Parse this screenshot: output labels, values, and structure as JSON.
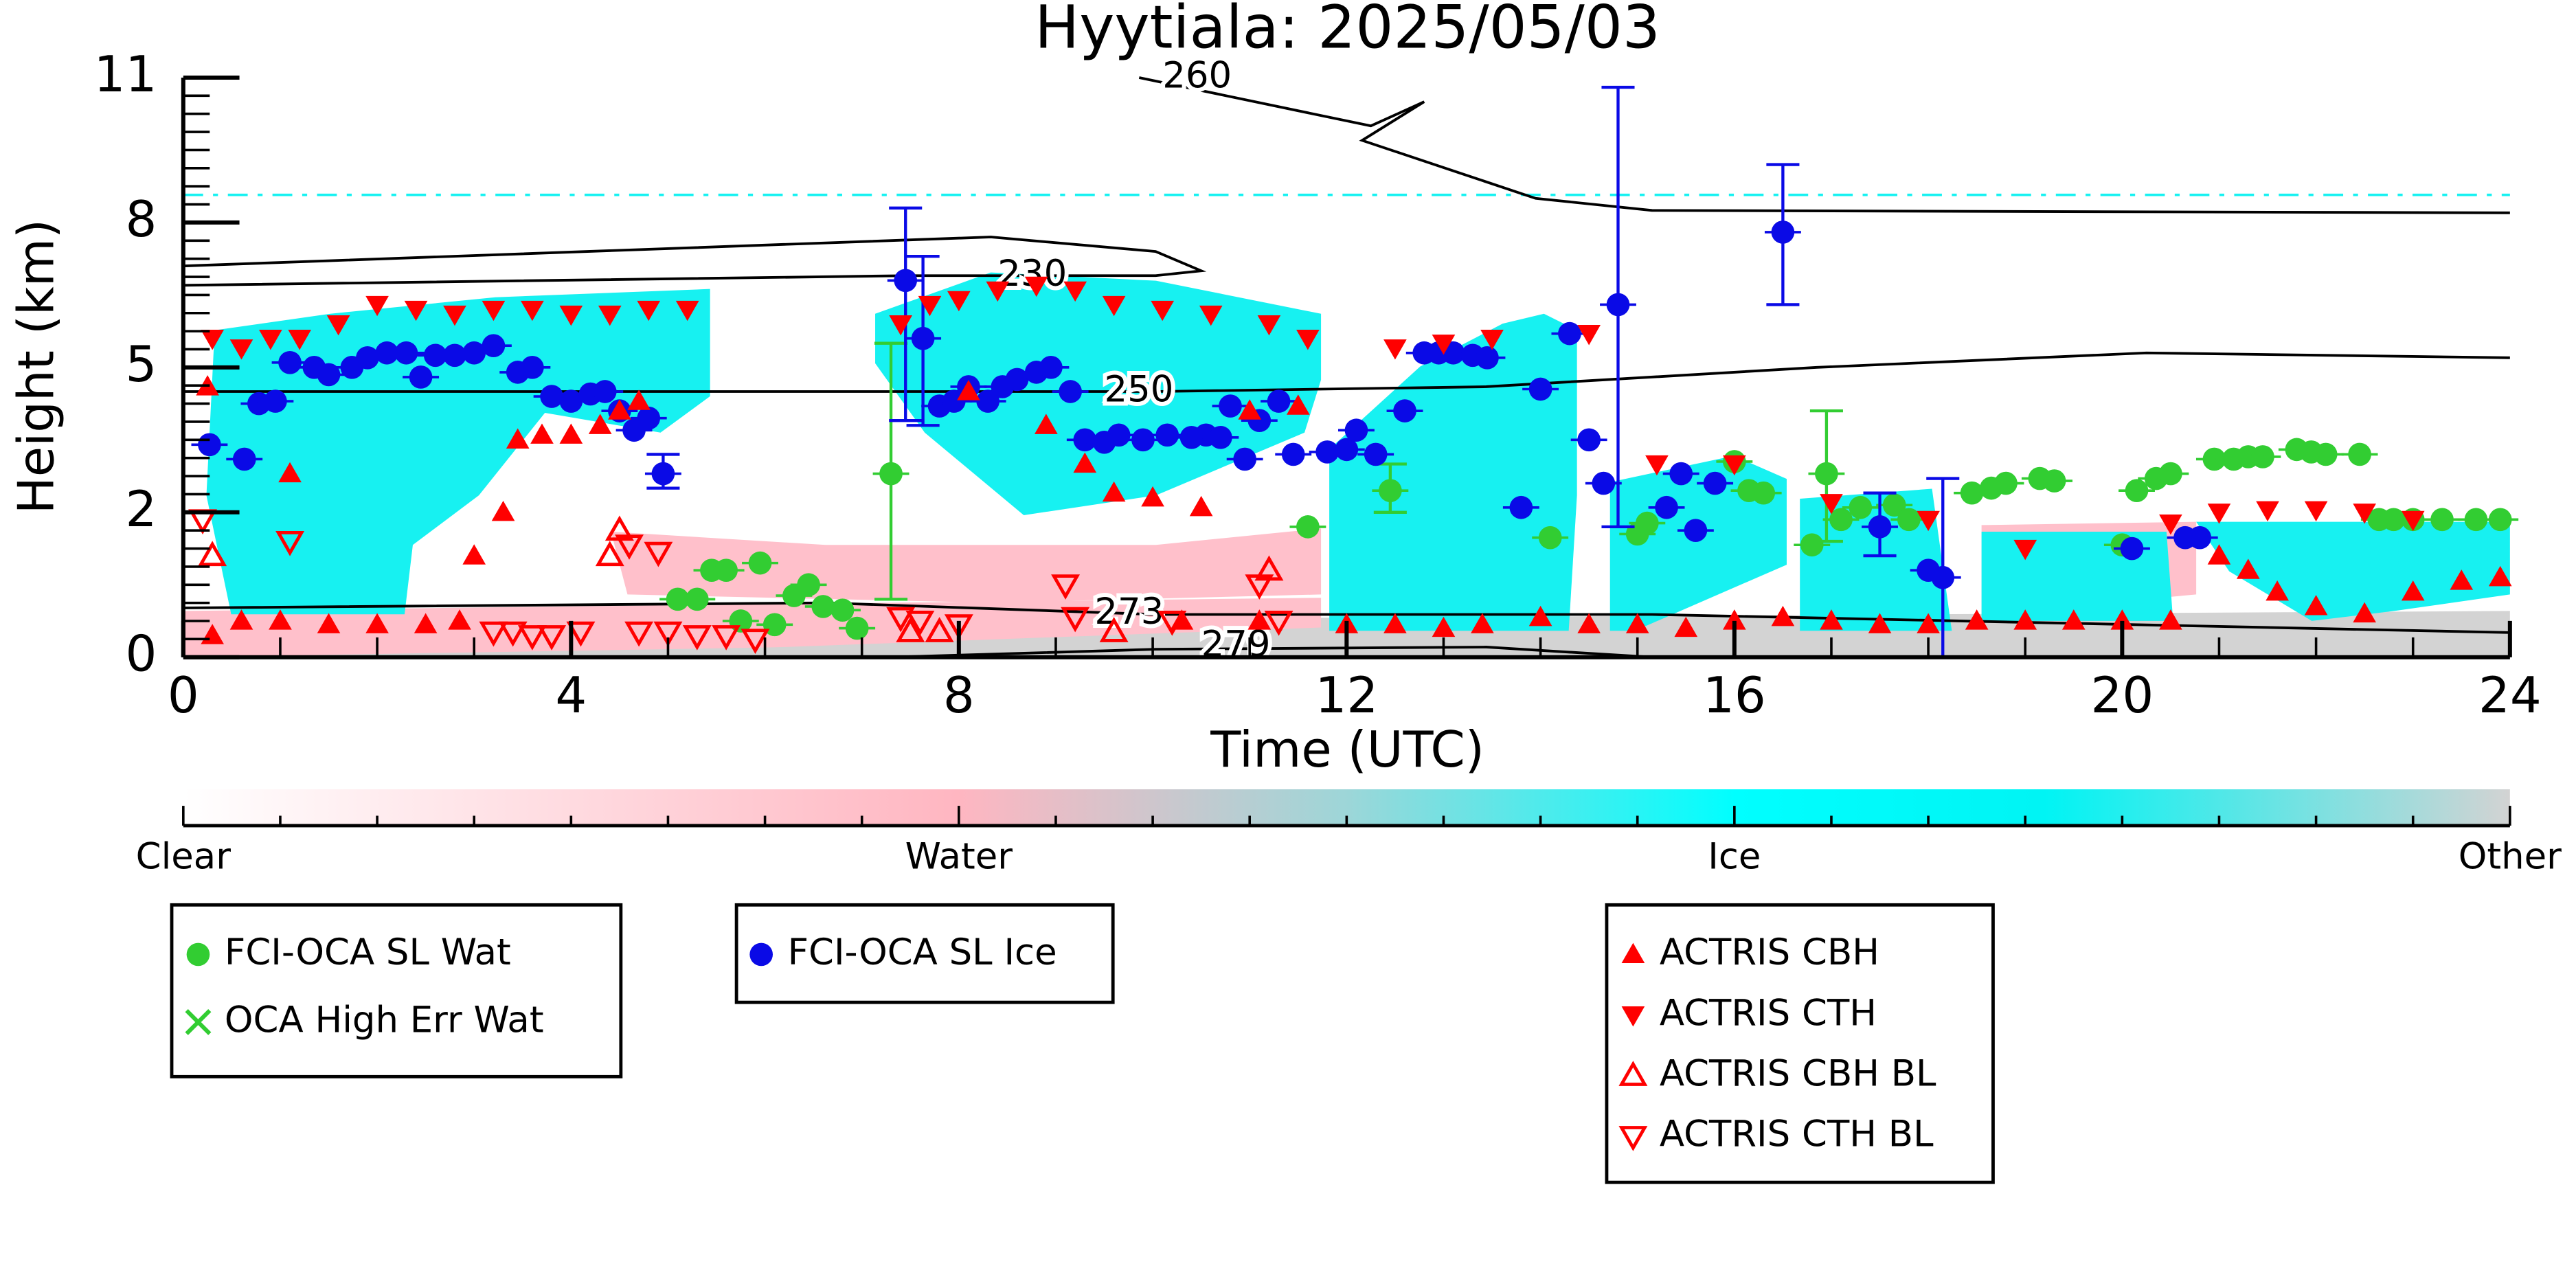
{
  "chart_data": {
    "type": "scatter",
    "title": "Hyytiala: 2025/05/03",
    "xlabel": "Time (UTC)",
    "ylabel": "Height (km)",
    "xlim": [
      0,
      24
    ],
    "xticks": [
      0,
      4,
      8,
      12,
      16,
      20,
      24
    ],
    "ylim": [
      0,
      11
    ],
    "yticks": [
      0,
      2,
      5,
      8,
      11
    ],
    "yscale": "piecewise",
    "series": [
      {
        "name": "FCI-OCA SL Wat",
        "color": "#32cd32",
        "marker": "circle",
        "x": [
          5.1,
          5.3,
          5.45,
          5.6,
          5.75,
          5.95,
          6.1,
          6.3,
          6.45,
          6.6,
          6.8,
          6.95,
          7.3,
          11.6,
          12.45,
          14.1,
          15.0,
          15.1,
          16.0,
          16.15,
          16.3,
          16.8,
          16.95,
          17.1,
          17.3,
          17.65,
          17.8,
          18.45,
          18.65,
          18.8,
          19.15,
          19.3,
          20.0,
          20.15,
          20.35,
          20.5,
          20.95,
          21.15,
          21.3,
          21.45,
          21.8,
          21.95,
          22.1,
          22.45,
          22.65,
          22.8,
          23.0,
          23.3,
          23.65,
          23.9
        ],
        "values": [
          0.8,
          0.8,
          1.2,
          1.2,
          0.5,
          1.3,
          0.45,
          0.85,
          1.0,
          0.7,
          0.65,
          0.4,
          2.8,
          1.8,
          2.45,
          1.65,
          1.7,
          1.85,
          3.05,
          2.45,
          2.4,
          1.55,
          2.8,
          1.9,
          2.1,
          2.15,
          1.9,
          2.4,
          2.5,
          2.6,
          2.7,
          2.65,
          1.55,
          2.45,
          2.7,
          2.8,
          3.1,
          3.1,
          3.15,
          3.15,
          3.3,
          3.25,
          3.2,
          3.2,
          1.9,
          1.9,
          1.9,
          1.9,
          1.9,
          1.9
        ],
        "errors": [
          null,
          null,
          null,
          null,
          null,
          null,
          null,
          null,
          null,
          null,
          null,
          null,
          [
            0.8,
            5.5
          ],
          null,
          [
            2.0,
            3.0
          ],
          null,
          null,
          null,
          null,
          null,
          null,
          null,
          [
            1.6,
            4.1
          ],
          null,
          null,
          null,
          null,
          null,
          null,
          null,
          null,
          null,
          null,
          null,
          null,
          null,
          null,
          null,
          null,
          null,
          null,
          null,
          null,
          null,
          null,
          null,
          null,
          null,
          null,
          null
        ]
      },
      {
        "name": "OCA High Err Wat",
        "color": "#32cd32",
        "marker": "x",
        "x": [],
        "values": []
      },
      {
        "name": "FCI-OCA SL Ice",
        "color": "#0a0ae6",
        "marker": "circle",
        "x": [
          0.27,
          0.63,
          0.78,
          0.95,
          1.1,
          1.35,
          1.5,
          1.74,
          1.9,
          2.1,
          2.3,
          2.45,
          2.6,
          2.8,
          3.0,
          3.2,
          3.45,
          3.6,
          3.8,
          4.0,
          4.2,
          4.35,
          4.5,
          4.65,
          4.8,
          4.95,
          7.45,
          7.63,
          7.8,
          7.95,
          8.1,
          8.3,
          8.45,
          8.6,
          8.8,
          8.95,
          9.15,
          9.3,
          9.5,
          9.65,
          9.9,
          10.15,
          10.4,
          10.55,
          10.7,
          10.8,
          10.95,
          11.1,
          11.3,
          11.45,
          11.8,
          12.0,
          12.1,
          12.3,
          12.6,
          12.8,
          12.95,
          13.1,
          13.3,
          13.45,
          13.8,
          14.0,
          14.3,
          14.5,
          14.65,
          14.8,
          15.3,
          15.45,
          15.6,
          15.8,
          16.5,
          17.5,
          18.0,
          18.15,
          20.1,
          20.65,
          20.8
        ],
        "values": [
          3.4,
          3.1,
          4.25,
          4.3,
          5.1,
          5.0,
          4.85,
          5.0,
          5.2,
          5.3,
          5.3,
          4.8,
          5.25,
          5.25,
          5.3,
          5.45,
          4.9,
          5.0,
          4.4,
          4.3,
          4.45,
          4.5,
          4.1,
          3.7,
          3.95,
          2.8,
          6.8,
          5.6,
          4.2,
          4.3,
          4.6,
          4.3,
          4.6,
          4.75,
          4.9,
          5.0,
          4.5,
          3.5,
          3.45,
          3.6,
          3.5,
          3.6,
          3.55,
          3.6,
          3.55,
          4.2,
          3.1,
          3.9,
          4.3,
          3.2,
          3.25,
          3.3,
          3.7,
          3.2,
          4.1,
          5.3,
          5.3,
          5.3,
          5.25,
          5.2,
          2.1,
          4.55,
          5.7,
          3.5,
          2.6,
          6.3,
          2.1,
          2.8,
          1.75,
          2.6,
          7.8,
          1.8,
          1.2,
          1.1,
          1.5,
          1.65,
          1.65
        ],
        "errors": [
          null,
          null,
          null,
          null,
          null,
          null,
          null,
          null,
          null,
          null,
          null,
          null,
          null,
          null,
          null,
          null,
          null,
          null,
          null,
          null,
          null,
          null,
          null,
          null,
          null,
          [
            2.5,
            3.2
          ],
          [
            3.9,
            8.3
          ],
          [
            3.8,
            7.3
          ],
          null,
          null,
          null,
          null,
          null,
          null,
          null,
          null,
          null,
          null,
          null,
          null,
          null,
          null,
          null,
          null,
          null,
          null,
          null,
          null,
          null,
          null,
          null,
          null,
          null,
          null,
          null,
          null,
          null,
          null,
          null,
          null,
          null,
          null,
          null,
          null,
          null,
          [
            1.8,
            10.8
          ],
          null,
          null,
          null,
          null,
          [
            6.3,
            9.2
          ],
          [
            1.4,
            2.4
          ],
          null,
          [
            0,
            2.7
          ],
          null,
          null,
          null
        ]
      },
      {
        "name": "ACTRIS CBH",
        "color": "#ff0000",
        "marker": "triangle-up",
        "x": [
          0.25,
          0.3,
          0.6,
          1.0,
          1.1,
          1.5,
          2.0,
          2.5,
          2.85,
          3.0,
          3.3,
          3.45,
          3.7,
          4.0,
          4.3,
          4.5,
          4.7,
          8.1,
          8.9,
          9.3,
          9.6,
          10.0,
          10.5,
          11.0,
          11.5,
          10.3,
          11.1,
          12.0,
          12.5,
          13.0,
          13.4,
          14.0,
          14.5,
          15.0,
          15.5,
          16.0,
          16.5,
          17.0,
          17.5,
          18.0,
          18.5,
          19.0,
          19.5,
          20.0,
          20.5,
          21.0,
          21.3,
          21.6,
          22.0,
          22.5,
          23.0,
          23.5,
          23.9
        ],
        "values": [
          4.6,
          0.3,
          0.5,
          0.5,
          2.8,
          0.45,
          0.45,
          0.45,
          0.5,
          1.4,
          2.0,
          3.5,
          3.6,
          3.6,
          3.8,
          4.1,
          4.3,
          4.5,
          3.8,
          3.0,
          2.4,
          2.3,
          2.1,
          4.1,
          4.2,
          0.5,
          0.5,
          0.45,
          0.45,
          0.4,
          0.45,
          0.55,
          0.45,
          0.45,
          0.4,
          0.5,
          0.55,
          0.5,
          0.45,
          0.45,
          0.5,
          0.5,
          0.5,
          0.5,
          0.5,
          1.4,
          1.2,
          0.9,
          0.7,
          0.6,
          0.9,
          1.05,
          1.1
        ]
      },
      {
        "name": "ACTRIS CTH",
        "color": "#ff0000",
        "marker": "triangle-down",
        "x": [
          0.3,
          0.6,
          0.9,
          1.2,
          1.6,
          2.0,
          2.4,
          2.8,
          3.2,
          3.6,
          4.0,
          4.4,
          4.8,
          5.2,
          7.4,
          7.7,
          8.0,
          8.4,
          8.8,
          9.2,
          9.6,
          10.1,
          10.6,
          11.2,
          11.6,
          12.5,
          13.0,
          13.5,
          14.5,
          15.2,
          16.0,
          17.0,
          18.0,
          19.0,
          20.5,
          21.0,
          21.5,
          22.0,
          22.5,
          23.0
        ],
        "values": [
          5.6,
          5.4,
          5.6,
          5.6,
          5.9,
          6.3,
          6.2,
          6.1,
          6.2,
          6.2,
          6.1,
          6.1,
          6.2,
          6.2,
          5.9,
          6.3,
          6.4,
          6.6,
          6.7,
          6.6,
          6.3,
          6.2,
          6.1,
          5.9,
          5.6,
          5.4,
          5.5,
          5.6,
          5.7,
          3.0,
          3.0,
          2.2,
          1.9,
          1.5,
          1.85,
          2.0,
          2.05,
          2.05,
          2.0,
          1.9
        ]
      },
      {
        "name": "ACTRIS CBH BL",
        "color": "#ff0000",
        "marker": "triangle-up-open",
        "x": [
          0.3,
          4.4,
          4.5,
          7.5,
          7.8,
          9.6,
          11.2
        ],
        "values": [
          1.4,
          1.4,
          1.75,
          0.35,
          0.35,
          0.35,
          1.2
        ]
      },
      {
        "name": "ACTRIS CTH BL",
        "color": "#ff0000",
        "marker": "triangle-down-open",
        "x": [
          0.2,
          1.1,
          3.2,
          3.4,
          3.6,
          3.8,
          4.1,
          4.6,
          4.7,
          4.9,
          5.0,
          5.3,
          5.6,
          5.9,
          7.4,
          7.6,
          8.0,
          9.1,
          9.2,
          10.2,
          11.1,
          11.3
        ],
        "values": [
          1.9,
          1.6,
          0.35,
          0.35,
          0.3,
          0.3,
          0.35,
          1.55,
          0.35,
          1.45,
          0.35,
          0.3,
          0.3,
          0.25,
          0.55,
          0.5,
          0.45,
          1.0,
          0.55,
          0.5,
          1.0,
          0.5
        ]
      }
    ],
    "contours": [
      {
        "label": "260",
        "x": [
          9.86,
          12.25,
          12.8,
          12.16,
          13.95,
          15.15,
          24
        ],
        "y": [
          11,
          10,
          10.5,
          9.7,
          8.5,
          8.25,
          8.2
        ],
        "label_x": 10.1,
        "label_y": 11
      },
      {
        "label": "230",
        "x": [
          0,
          8.33,
          10.03,
          10.5,
          10.03,
          7.48,
          0
        ],
        "y": [
          7.1,
          7.7,
          7.4,
          7.0,
          6.9,
          6.9,
          6.7
        ],
        "label_x": 8.4,
        "label_y": 6.9
      },
      {
        "label": "250",
        "x": [
          0,
          10.03,
          13.44,
          16.85,
          20.25,
          24
        ],
        "y": [
          4.5,
          4.5,
          4.6,
          5.0,
          5.3,
          5.2
        ],
        "label_x": 9.5,
        "label_y": 4.5
      },
      {
        "label": "273",
        "x": [
          0,
          6.63,
          10.03,
          15.15,
          24
        ],
        "y": [
          0.68,
          0.75,
          0.59,
          0.59,
          0.34
        ],
        "label_x": 9.4,
        "label_y": 0.6
      },
      {
        "label": "279",
        "x": [
          7.3,
          10.03,
          13.44,
          15.15
        ],
        "y": [
          0,
          0.11,
          0.14,
          0
        ],
        "label_x": 10.5,
        "label_y": 0.15
      }
    ],
    "colorbar": {
      "labels": [
        "Clear",
        "Water",
        "Ice",
        "Other"
      ]
    }
  }
}
